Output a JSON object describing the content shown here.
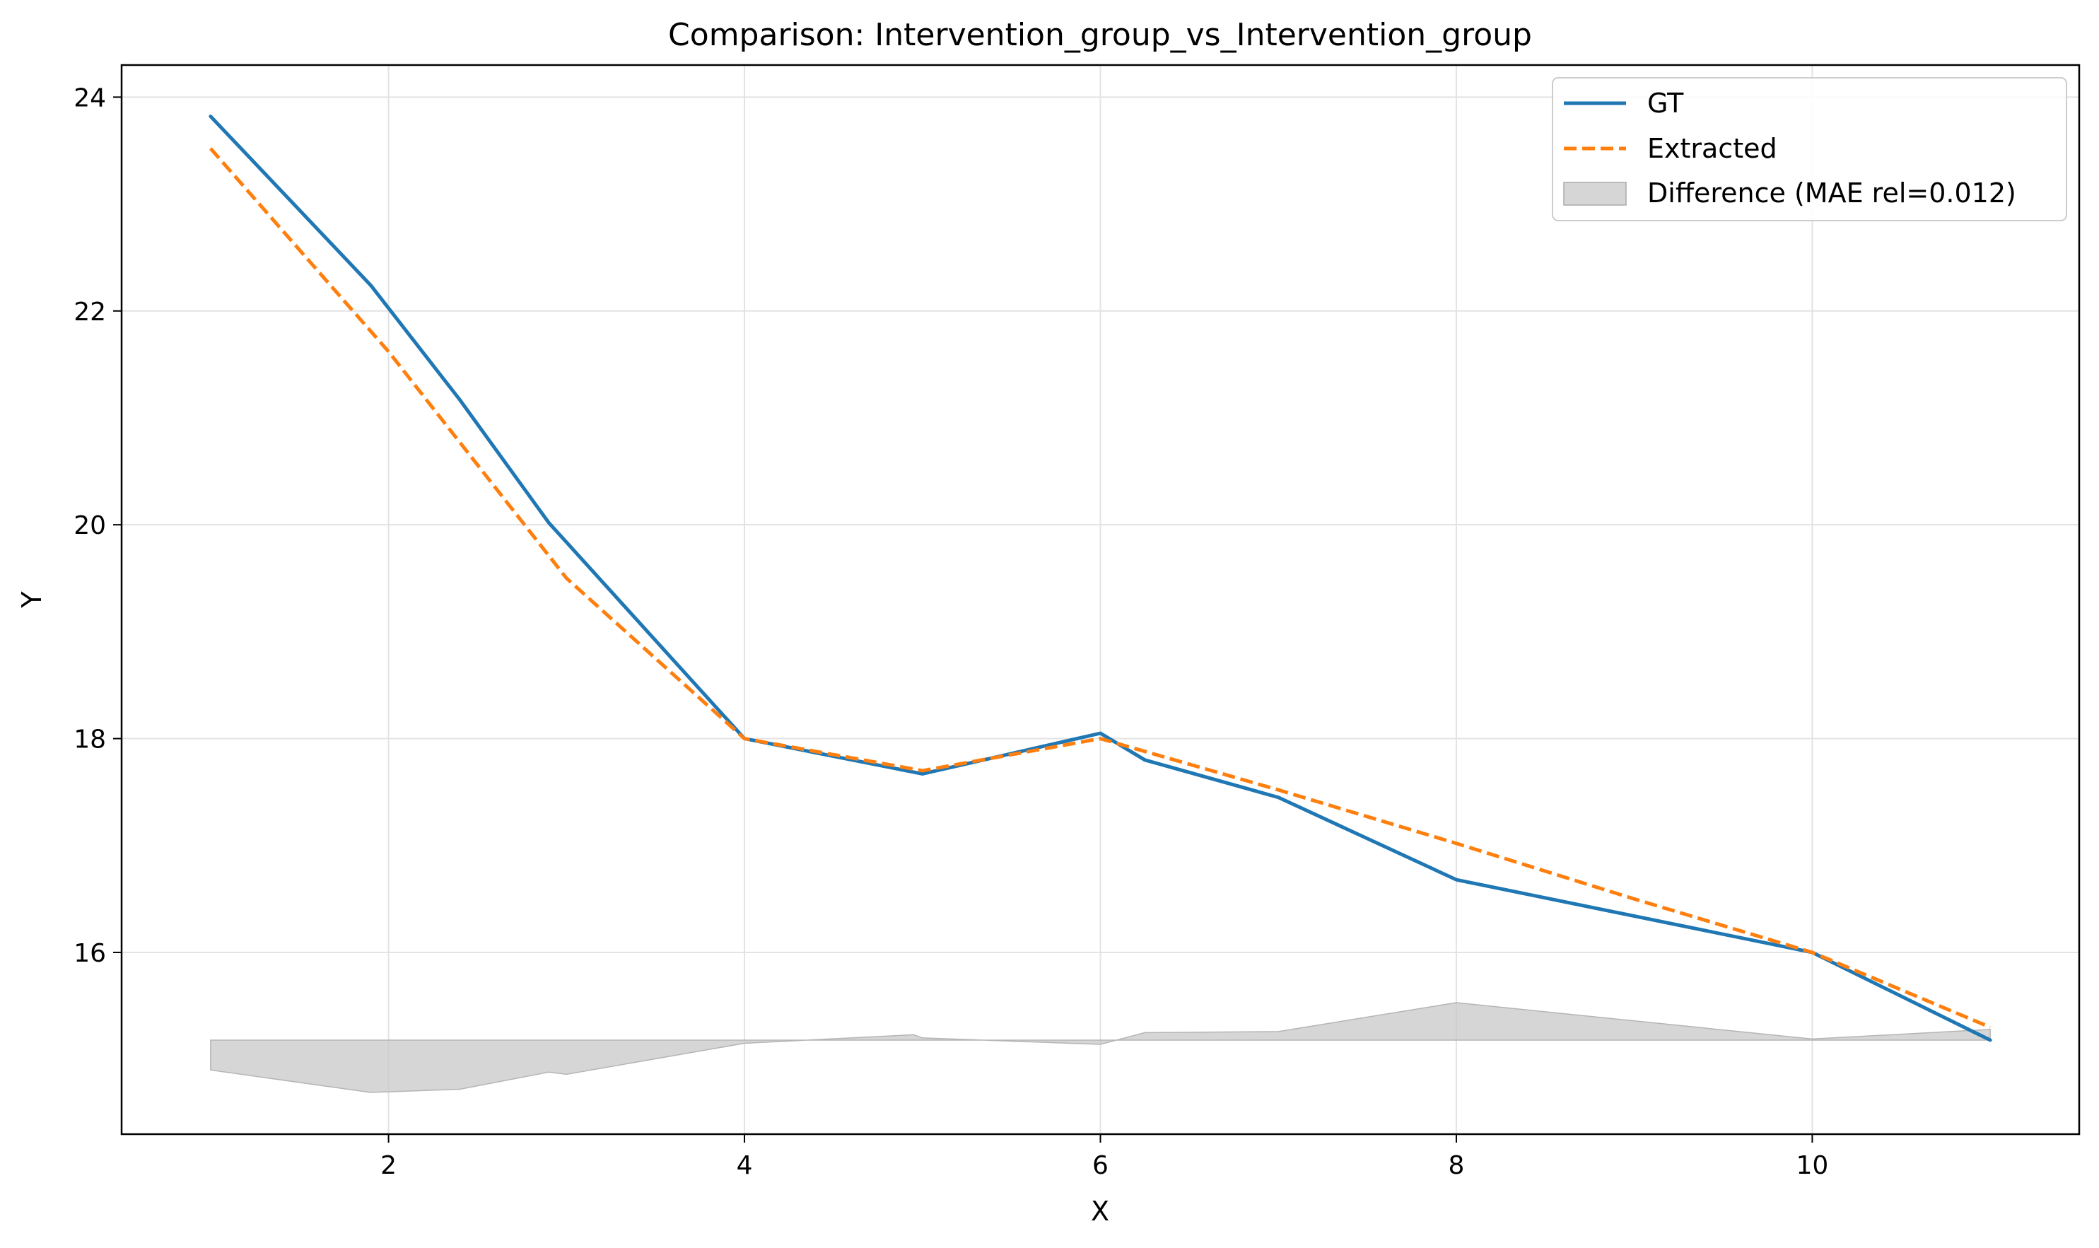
{
  "chart_data": {
    "type": "line",
    "title": "Comparison: Intervention_group_vs_Intervention_group",
    "xlabel": "X",
    "ylabel": "Y",
    "xlim": [
      0.5,
      11.5
    ],
    "ylim": [
      14.3,
      24.3
    ],
    "xticks": [
      2,
      4,
      6,
      8,
      10
    ],
    "yticks": [
      16,
      18,
      20,
      22,
      24
    ],
    "grid": true,
    "legend_position": "top-right",
    "colors": {
      "gt": "#1f77b4",
      "extracted": "#ff7f0e",
      "difference": "#c8c8c8"
    },
    "series": [
      {
        "name": "GT",
        "style": "solid",
        "x": [
          1.0,
          1.9,
          2.4,
          2.9,
          4.0,
          5.0,
          6.0,
          6.25,
          7.0,
          8.0,
          10.0,
          11.0
        ],
        "y": [
          23.82,
          22.24,
          21.17,
          20.02,
          18.0,
          17.67,
          18.05,
          17.8,
          17.45,
          16.68,
          16.0,
          15.18
        ]
      },
      {
        "name": "Extracted",
        "style": "dashed",
        "x": [
          1.0,
          2.0,
          3.0,
          4.0,
          5.0,
          6.0,
          7.0,
          8.0,
          9.0,
          10.0,
          11.0
        ],
        "y": [
          23.52,
          21.62,
          19.5,
          18.0,
          17.7,
          18.0,
          17.52,
          17.02,
          16.5,
          16.0,
          15.3
        ]
      }
    ],
    "difference_band": {
      "name": "Difference (MAE rel=0.012)",
      "baseline": 15.18,
      "x": [
        1.0,
        1.9,
        2.4,
        2.9,
        3.0,
        4.0,
        4.95,
        5.0,
        6.0,
        6.25,
        7.0,
        8.0,
        10.0,
        11.0
      ],
      "y": [
        14.9,
        14.69,
        14.72,
        14.88,
        14.86,
        15.15,
        15.23,
        15.2,
        15.14,
        15.25,
        15.26,
        15.53,
        15.19,
        15.28
      ]
    }
  }
}
